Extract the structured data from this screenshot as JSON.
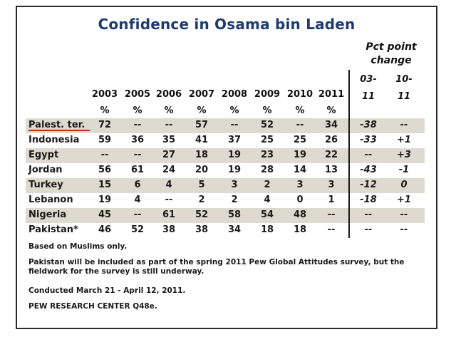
{
  "chart_data": {
    "type": "table",
    "title": "Confidence in Osama bin Laden",
    "columns": [
      "2003",
      "2005",
      "2006",
      "2007",
      "2008",
      "2009",
      "2010",
      "2011"
    ],
    "unit_label": "%",
    "change_header_line1": "Pct point",
    "change_header_line2": "change",
    "change_columns": [
      "03-11",
      "10-11"
    ],
    "rows": [
      {
        "label": "Palest. ter.",
        "values": [
          "72",
          "--",
          "--",
          "57",
          "--",
          "52",
          "--",
          "34"
        ],
        "change": [
          "-38",
          "--"
        ]
      },
      {
        "label": "Indonesia",
        "values": [
          "59",
          "36",
          "35",
          "41",
          "37",
          "25",
          "25",
          "26"
        ],
        "change": [
          "-33",
          "+1"
        ]
      },
      {
        "label": "Egypt",
        "values": [
          "--",
          "--",
          "27",
          "18",
          "19",
          "23",
          "19",
          "22"
        ],
        "change": [
          "--",
          "+3"
        ]
      },
      {
        "label": "Jordan",
        "values": [
          "56",
          "61",
          "24",
          "20",
          "19",
          "28",
          "14",
          "13"
        ],
        "change": [
          "-43",
          "-1"
        ]
      },
      {
        "label": "Turkey",
        "values": [
          "15",
          "6",
          "4",
          "5",
          "3",
          "2",
          "3",
          "3"
        ],
        "change": [
          "-12",
          "0"
        ]
      },
      {
        "label": "Lebanon",
        "values": [
          "19",
          "4",
          "--",
          "2",
          "2",
          "4",
          "0",
          "1"
        ],
        "change": [
          "-18",
          "+1"
        ]
      },
      {
        "label": "Nigeria",
        "values": [
          "45",
          "--",
          "61",
          "52",
          "58",
          "54",
          "48",
          "--"
        ],
        "change": [
          "--",
          "--"
        ]
      },
      {
        "label": "Pakistan*",
        "values": [
          "46",
          "52",
          "38",
          "38",
          "34",
          "18",
          "18",
          "--"
        ],
        "change": [
          "--",
          "--"
        ]
      }
    ],
    "highlight_color": "#c62828",
    "shade_color": "#dedad0",
    "title_color": "#1f3b6e"
  },
  "notes": [
    "Based on Muslims only.",
    "Pakistan will be included as part of the spring 2011 Pew Global Attitudes survey, but the fieldwork for the survey is still underway.",
    "Conducted March 21 - April 12, 2011.",
    "PEW RESEARCH CENTER Q48e."
  ]
}
